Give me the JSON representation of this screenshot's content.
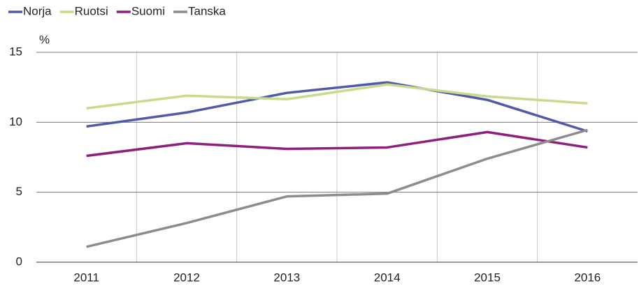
{
  "chart_data": {
    "type": "line",
    "y_label": "%",
    "categories": [
      "2011",
      "2012",
      "2013",
      "2014",
      "2015",
      "2016"
    ],
    "series": [
      {
        "name": "Norja",
        "color": "#4f5aa8",
        "values": [
          9.7,
          10.7,
          12.1,
          12.85,
          11.6,
          9.35
        ]
      },
      {
        "name": "Ruotsi",
        "color": "#c8db8c",
        "values": [
          11.0,
          11.9,
          11.65,
          12.7,
          11.85,
          11.35
        ]
      },
      {
        "name": "Suomi",
        "color": "#8f1f7e",
        "values": [
          7.6,
          8.5,
          8.1,
          8.2,
          9.3,
          8.2
        ]
      },
      {
        "name": "Tanska",
        "color": "#8c8c8c",
        "values": [
          1.1,
          2.8,
          4.7,
          4.9,
          7.4,
          9.45
        ]
      }
    ],
    "ylim": [
      0,
      15
    ],
    "yticks": [
      0,
      5,
      10,
      15
    ],
    "grid": true,
    "legend": "top-left"
  }
}
